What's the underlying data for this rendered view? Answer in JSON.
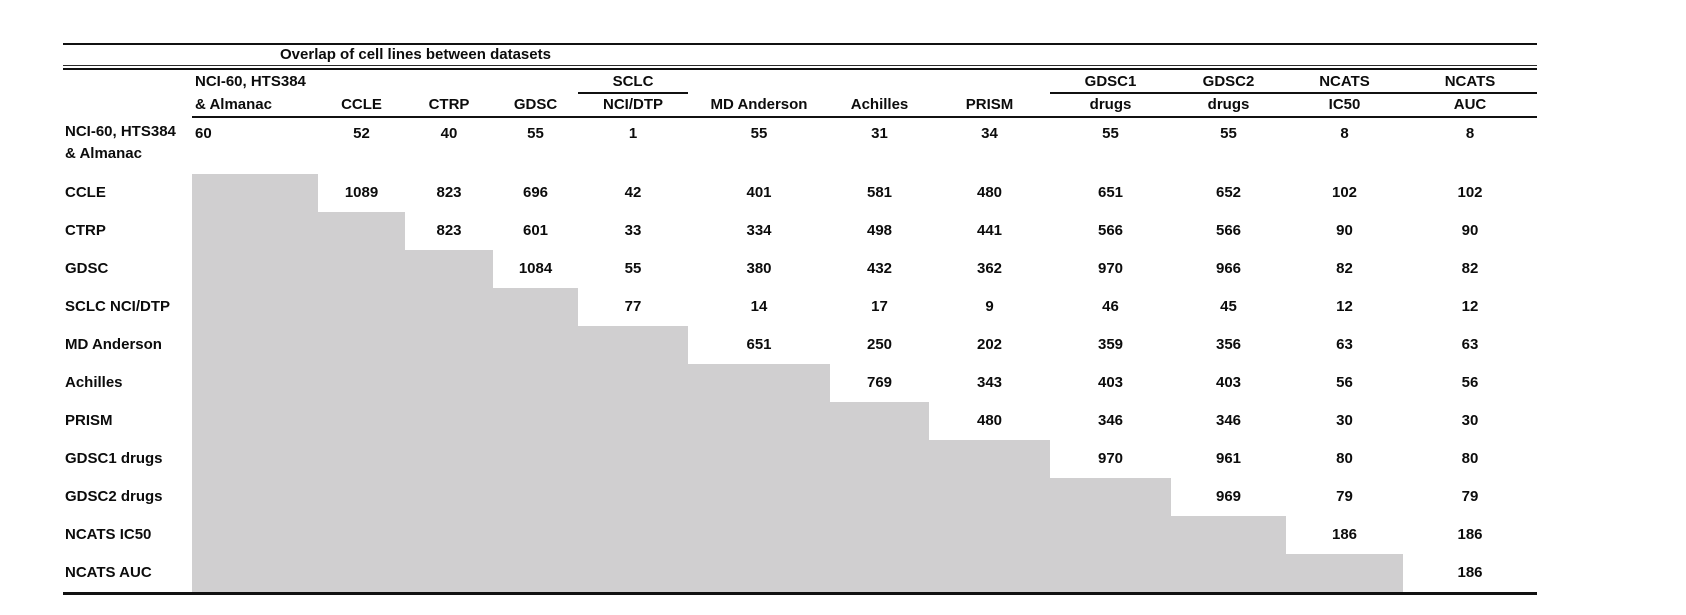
{
  "chart_data": {
    "type": "table",
    "title": "Overlap of cell lines between datasets",
    "col_headers": [
      {
        "line1": "NCI-60, HTS384",
        "line2": "& Almanac",
        "underline": false
      },
      {
        "line1": "",
        "line2": "CCLE",
        "underline": false
      },
      {
        "line1": "",
        "line2": "CTRP",
        "underline": false
      },
      {
        "line1": "",
        "line2": "GDSC",
        "underline": false
      },
      {
        "line1": "SCLC",
        "line2": "NCI/DTP",
        "underline": true
      },
      {
        "line1": "",
        "line2": "MD Anderson",
        "underline": false
      },
      {
        "line1": "",
        "line2": "Achilles",
        "underline": false
      },
      {
        "line1": "",
        "line2": "PRISM",
        "underline": false
      },
      {
        "line1": "GDSC1",
        "line2": "drugs",
        "underline": true
      },
      {
        "line1": "GDSC2",
        "line2": "drugs",
        "underline": true
      },
      {
        "line1": "NCATS",
        "line2": "IC50",
        "underline": true
      },
      {
        "line1": "NCATS",
        "line2": "AUC",
        "underline": true
      }
    ],
    "rows": [
      {
        "label_line1": "NCI-60, HTS384",
        "label_line2": "& Almanac",
        "values": [
          60,
          52,
          40,
          55,
          1,
          55,
          31,
          34,
          55,
          55,
          8,
          8
        ]
      },
      {
        "label_line1": "CCLE",
        "label_line2": "",
        "values": [
          null,
          1089,
          823,
          696,
          42,
          401,
          581,
          480,
          651,
          652,
          102,
          102
        ]
      },
      {
        "label_line1": "CTRP",
        "label_line2": "",
        "values": [
          null,
          null,
          823,
          601,
          33,
          334,
          498,
          441,
          566,
          566,
          90,
          90
        ]
      },
      {
        "label_line1": "GDSC",
        "label_line2": "",
        "values": [
          null,
          null,
          null,
          1084,
          55,
          380,
          432,
          362,
          970,
          966,
          82,
          82
        ]
      },
      {
        "label_line1": "SCLC NCI/DTP",
        "label_line2": "",
        "values": [
          null,
          null,
          null,
          null,
          77,
          14,
          17,
          9,
          46,
          45,
          12,
          12
        ]
      },
      {
        "label_line1": "MD Anderson",
        "label_line2": "",
        "values": [
          null,
          null,
          null,
          null,
          null,
          651,
          250,
          202,
          359,
          356,
          63,
          63
        ]
      },
      {
        "label_line1": "Achilles",
        "label_line2": "",
        "values": [
          null,
          null,
          null,
          null,
          null,
          null,
          769,
          343,
          403,
          403,
          56,
          56
        ]
      },
      {
        "label_line1": "PRISM",
        "label_line2": "",
        "values": [
          null,
          null,
          null,
          null,
          null,
          null,
          null,
          480,
          346,
          346,
          30,
          30
        ]
      },
      {
        "label_line1": "GDSC1 drugs",
        "label_line2": "",
        "values": [
          null,
          null,
          null,
          null,
          null,
          null,
          null,
          null,
          970,
          961,
          80,
          80
        ]
      },
      {
        "label_line1": "GDSC2 drugs",
        "label_line2": "",
        "values": [
          null,
          null,
          null,
          null,
          null,
          null,
          null,
          null,
          null,
          969,
          79,
          79
        ]
      },
      {
        "label_line1": "NCATS IC50",
        "label_line2": "",
        "values": [
          null,
          null,
          null,
          null,
          null,
          null,
          null,
          null,
          null,
          null,
          186,
          186
        ]
      },
      {
        "label_line1": "NCATS AUC",
        "label_line2": "",
        "values": [
          null,
          null,
          null,
          null,
          null,
          null,
          null,
          null,
          null,
          null,
          null,
          186
        ]
      }
    ],
    "shaded_region": "lower-triangle",
    "shade_color": "#d0cfd0",
    "layout": {
      "legend": "none",
      "grid": "booktabs-rules",
      "text_weight": "bold"
    }
  }
}
